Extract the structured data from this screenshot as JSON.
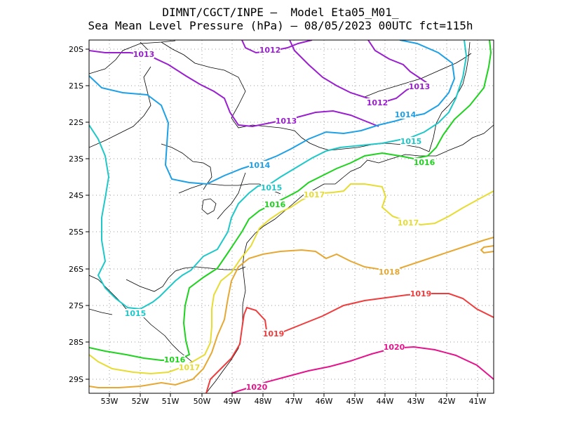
{
  "header": {
    "line1": "DIMNT/CGCT/INPE –  Model Eta05_M01_",
    "line2": "Sea Mean Level Pressure (hPa) – 08/05/2023 00UTC fct=115h"
  },
  "map": {
    "lon_labels": [
      "53W",
      "52W",
      "51W",
      "50W",
      "49W",
      "48W",
      "47W",
      "46W",
      "45W",
      "44W",
      "43W",
      "42W",
      "41W"
    ],
    "lat_labels": [
      "20S",
      "21S",
      "22S",
      "23S",
      "24S",
      "25S",
      "26S",
      "27S",
      "28S",
      "29S"
    ],
    "colors": {
      "1012": "#9a1fd0",
      "1013": "#9a1fd0",
      "1014": "#1ea0e6",
      "1015": "#1ec8c8",
      "1016": "#1ed21e",
      "1017": "#e6dc32",
      "1018": "#e6a832",
      "1019": "#f03c3c",
      "1020": "#e6148c",
      "coast": "#000000",
      "grid": "#999999"
    },
    "contour_labels": [
      {
        "text": "1013",
        "level": "1013"
      },
      {
        "text": "1012",
        "level": "1012"
      },
      {
        "text": "1013",
        "level": "1013"
      },
      {
        "text": "1012",
        "level": "1012"
      },
      {
        "text": "1013",
        "level": "1013"
      },
      {
        "text": "1014",
        "level": "1014"
      },
      {
        "text": "1015",
        "level": "1015"
      },
      {
        "text": "1014",
        "level": "1014"
      },
      {
        "text": "1016",
        "level": "1016"
      },
      {
        "text": "1015",
        "level": "1015"
      },
      {
        "text": "1017",
        "level": "1017"
      },
      {
        "text": "1016",
        "level": "1016"
      },
      {
        "text": "1017",
        "level": "1017"
      },
      {
        "text": "1018",
        "level": "1018"
      },
      {
        "text": "1019",
        "level": "1019"
      },
      {
        "text": "1015",
        "level": "1015"
      },
      {
        "text": "1019",
        "level": "1019"
      },
      {
        "text": "1020",
        "level": "1020"
      },
      {
        "text": "1016",
        "level": "1016"
      },
      {
        "text": "1017",
        "level": "1017"
      },
      {
        "text": "1020",
        "level": "1020"
      }
    ]
  }
}
